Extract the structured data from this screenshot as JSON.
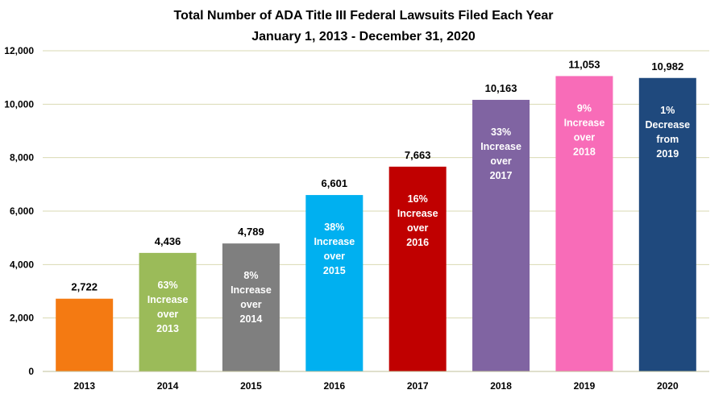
{
  "chart_data": {
    "type": "bar",
    "title": "Total Number of ADA Title III Federal Lawsuits Filed Each Year",
    "subtitle": "January 1, 2013 - December 31, 2020",
    "xlabel": "",
    "ylabel": "",
    "ylim": [
      0,
      12000
    ],
    "yticks": [
      0,
      2000,
      4000,
      6000,
      8000,
      10000,
      12000
    ],
    "ytick_labels": [
      "0",
      "2,000",
      "4,000",
      "6,000",
      "8,000",
      "10,000",
      "12,000"
    ],
    "grid": true,
    "legend": "none",
    "categories": [
      "2013",
      "2014",
      "2015",
      "2016",
      "2017",
      "2018",
      "2019",
      "2020"
    ],
    "values": [
      2722,
      4436,
      4789,
      6601,
      7663,
      10163,
      11053,
      10982
    ],
    "value_labels": [
      "2,722",
      "4,436",
      "4,789",
      "6,601",
      "7,663",
      "10,163",
      "11,053",
      "10,982"
    ],
    "bar_colors": [
      "#f47a12",
      "#9bbb59",
      "#7f7f7f",
      "#00b0f0",
      "#c00000",
      "#8064a2",
      "#f86cb8",
      "#1f497d"
    ],
    "annotations": [
      [],
      [
        "63%",
        "Increase",
        "over",
        "2013"
      ],
      [
        "8%",
        "Increase",
        "over",
        "2014"
      ],
      [
        "38%",
        "Increase",
        "over",
        "2015"
      ],
      [
        "16%",
        "Increase",
        "over",
        "2016"
      ],
      [
        "33%",
        "Increase",
        "over",
        "2017"
      ],
      [
        "9%",
        "Increase",
        "over",
        "2018"
      ],
      [
        "1%",
        "Decrease",
        "from",
        "2019"
      ]
    ]
  }
}
